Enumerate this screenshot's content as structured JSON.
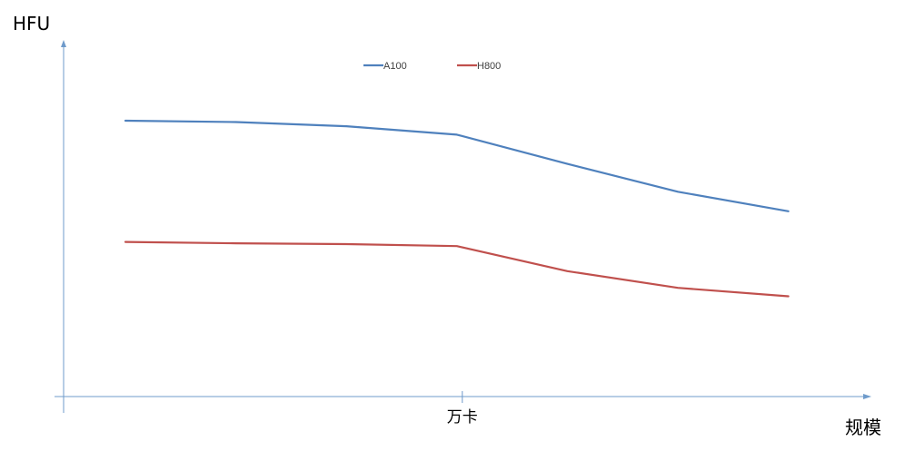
{
  "chart_data": {
    "type": "line",
    "ylabel": "HFU",
    "xlabel": "规模",
    "x_tick_labels": [
      {
        "index": 3,
        "label": "万卡"
      }
    ],
    "x": [
      0,
      1,
      2,
      3,
      4,
      5,
      6
    ],
    "xlim": [
      -0.6,
      7
    ],
    "ylim": [
      0,
      1
    ],
    "legend_position": "top-center",
    "grid": false,
    "series": [
      {
        "name": "A100",
        "color": "#4F81BD",
        "values": [
          0.99,
          0.985,
          0.97,
          0.94,
          0.835,
          0.735,
          0.665
        ]
      },
      {
        "name": "H800",
        "color": "#C0504D",
        "values": [
          0.555,
          0.55,
          0.547,
          0.54,
          0.45,
          0.39,
          0.36
        ]
      }
    ]
  }
}
